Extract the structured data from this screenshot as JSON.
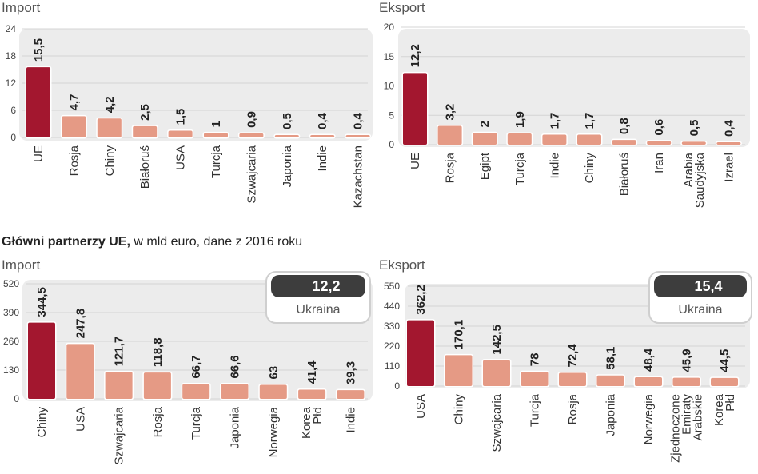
{
  "heading": {
    "bold": "Główni partnerzy UE,",
    "rest": " w mld euro, dane z 2016 roku"
  },
  "colors": {
    "accent": "#a3172f",
    "bar": "#e59a85",
    "panel": "#ececec",
    "callout_dark": "#3d3d3d"
  },
  "chart_data": [
    {
      "type": "bar",
      "title": "Import",
      "categories": [
        "UE",
        "Rosja",
        "Chiny",
        "Białoruś",
        "USA",
        "Turcja",
        "Szwajcaria",
        "Japonia",
        "Indie",
        "Kazachstan"
      ],
      "values": [
        15.5,
        4.7,
        4.2,
        2.5,
        1.5,
        1,
        0.9,
        0.5,
        0.4,
        0.4
      ],
      "value_labels": [
        "15,5",
        "4,7",
        "4,2",
        "2,5",
        "1,5",
        "1",
        "0,9",
        "0,5",
        "0,4",
        "0,4"
      ],
      "yticks": [
        "0",
        "6",
        "12",
        "18",
        "24"
      ],
      "ylim": [
        0,
        24
      ],
      "xlabel": "",
      "ylabel": ""
    },
    {
      "type": "bar",
      "title": "Eksport",
      "categories": [
        "UE",
        "Rosja",
        "Egipt",
        "Turcja",
        "Indie",
        "Chiny",
        "Białoruś",
        "Iran",
        "Arabia Saudyjska",
        "Izrael"
      ],
      "values": [
        12.2,
        3.2,
        2,
        1.9,
        1.7,
        1.7,
        0.8,
        0.6,
        0.5,
        0.4
      ],
      "value_labels": [
        "12,2",
        "3,2",
        "2",
        "1,9",
        "1,7",
        "1,7",
        "0,8",
        "0,6",
        "0,5",
        "0,4"
      ],
      "yticks": [
        "0",
        "5",
        "10",
        "15",
        "20"
      ],
      "ylim": [
        0,
        20
      ],
      "xlabel": "",
      "ylabel": ""
    },
    {
      "type": "bar",
      "title": "Import",
      "categories": [
        "Chiny",
        "USA",
        "Szwajcaria",
        "Rosja",
        "Turcja",
        "Japonia",
        "Norwegia",
        "Korea Płd",
        "Indie"
      ],
      "values": [
        344.5,
        247.8,
        121.7,
        118.8,
        66.7,
        66.6,
        63,
        41.4,
        39.3
      ],
      "value_labels": [
        "344,5",
        "247,8",
        "121,7",
        "118,8",
        "66,7",
        "66,6",
        "63",
        "41,4",
        "39,3"
      ],
      "yticks": [
        "0",
        "130",
        "260",
        "390",
        "520"
      ],
      "ylim": [
        0,
        520
      ],
      "callout": {
        "value": "12,2",
        "name": "Ukraina"
      },
      "xlabel": "",
      "ylabel": ""
    },
    {
      "type": "bar",
      "title": "Eksport",
      "categories": [
        "USA",
        "Chiny",
        "Szwajcaria",
        "Turcja",
        "Rosja",
        "Japonia",
        "Norwegia",
        "Zjednoczone Emiraty Arabskie",
        "Korea Płd"
      ],
      "values": [
        362.2,
        170.1,
        142.5,
        78,
        72.4,
        58.1,
        48.4,
        45.9,
        44.5
      ],
      "value_labels": [
        "362,2",
        "170,1",
        "142,5",
        "78",
        "72,4",
        "58,1",
        "48,4",
        "45,9",
        "44,5"
      ],
      "yticks": [
        "0",
        "110",
        "220",
        "330",
        "440",
        "550"
      ],
      "ylim": [
        0,
        550
      ],
      "callout": {
        "value": "15,4",
        "name": "Ukraina"
      },
      "xlabel": "",
      "ylabel": ""
    }
  ]
}
